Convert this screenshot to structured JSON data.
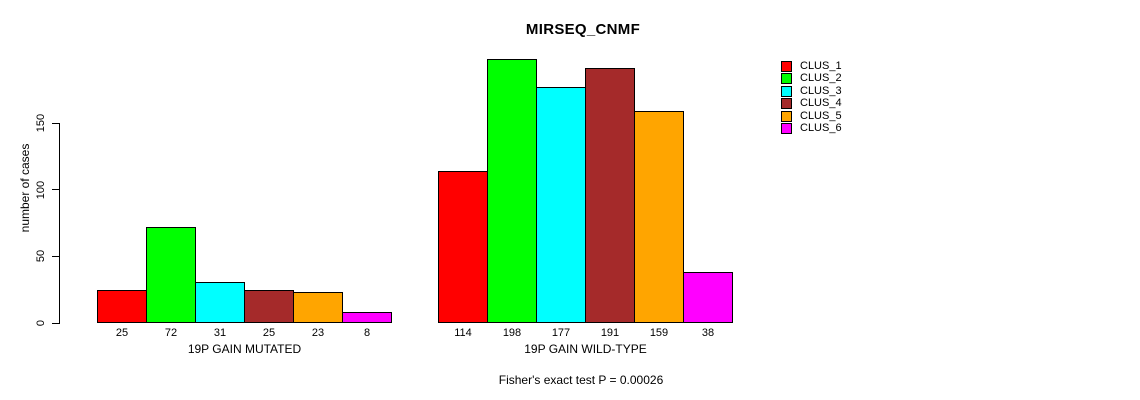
{
  "chart_data": {
    "type": "bar",
    "title": "MIRSEQ_CNMF",
    "ylabel": "number of cases",
    "xlabel": "",
    "categories": [
      "19P GAIN MUTATED",
      "19P GAIN WILD-TYPE"
    ],
    "series": [
      {
        "name": "CLUS_1",
        "color": "#FF0000",
        "values": [
          25,
          114
        ]
      },
      {
        "name": "CLUS_2",
        "color": "#00FF00",
        "values": [
          72,
          198
        ]
      },
      {
        "name": "CLUS_3",
        "color": "#00FFFF",
        "values": [
          31,
          177
        ]
      },
      {
        "name": "CLUS_4",
        "color": "#A52A2A",
        "values": [
          25,
          191
        ]
      },
      {
        "name": "CLUS_5",
        "color": "#FFA500",
        "values": [
          23,
          159
        ]
      },
      {
        "name": "CLUS_6",
        "color": "#FF00FF",
        "values": [
          8,
          38
        ]
      }
    ],
    "yticks": [
      0,
      50,
      100,
      150
    ],
    "ylim": [
      0,
      210
    ],
    "grid": false,
    "legend_position": "right",
    "bar_value_labels_shown": true,
    "footnote": "Fisher's exact test P = 0.00026",
    "axis_color": "#000000",
    "background_color": "#FFFFFF"
  }
}
